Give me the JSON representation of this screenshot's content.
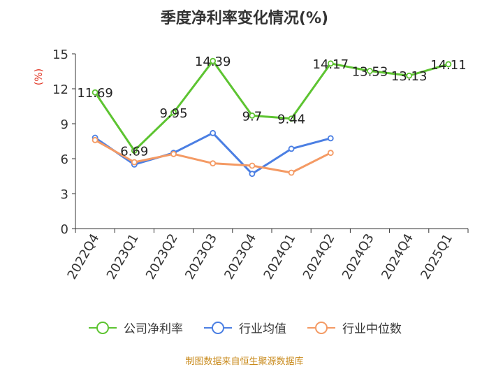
{
  "chart_data": {
    "type": "line",
    "title": "季度净利率变化情况(%)",
    "ylabel": "(%)",
    "ylim": [
      0,
      15
    ],
    "yticks": [
      0,
      3,
      6,
      9,
      12,
      15
    ],
    "categories": [
      "2022Q4",
      "2023Q1",
      "2023Q2",
      "2023Q3",
      "2023Q4",
      "2024Q1",
      "2024Q2",
      "2024Q3",
      "2024Q4",
      "2025Q1"
    ],
    "series": [
      {
        "name": "公司净利率",
        "color": "#5dc431",
        "values": [
          11.69,
          6.69,
          9.95,
          14.39,
          9.7,
          9.44,
          14.17,
          13.53,
          13.13,
          14.11
        ],
        "labels": [
          "11.69",
          "6.69",
          "9.95",
          "14.39",
          "9.7",
          "9.44",
          "14.17",
          "13.53",
          "13.13",
          "14.11"
        ]
      },
      {
        "name": "行业均值",
        "color": "#4b7fe3",
        "values": [
          7.8,
          5.5,
          6.5,
          8.2,
          4.7,
          6.85,
          7.75,
          null,
          null,
          null
        ]
      },
      {
        "name": "行业中位数",
        "color": "#f49a64",
        "values": [
          7.6,
          5.7,
          6.4,
          5.6,
          5.4,
          4.8,
          6.5,
          null,
          null,
          null
        ]
      }
    ],
    "grid": false,
    "legend": "bottom"
  },
  "source": "制图数据来自恒生聚源数据库"
}
